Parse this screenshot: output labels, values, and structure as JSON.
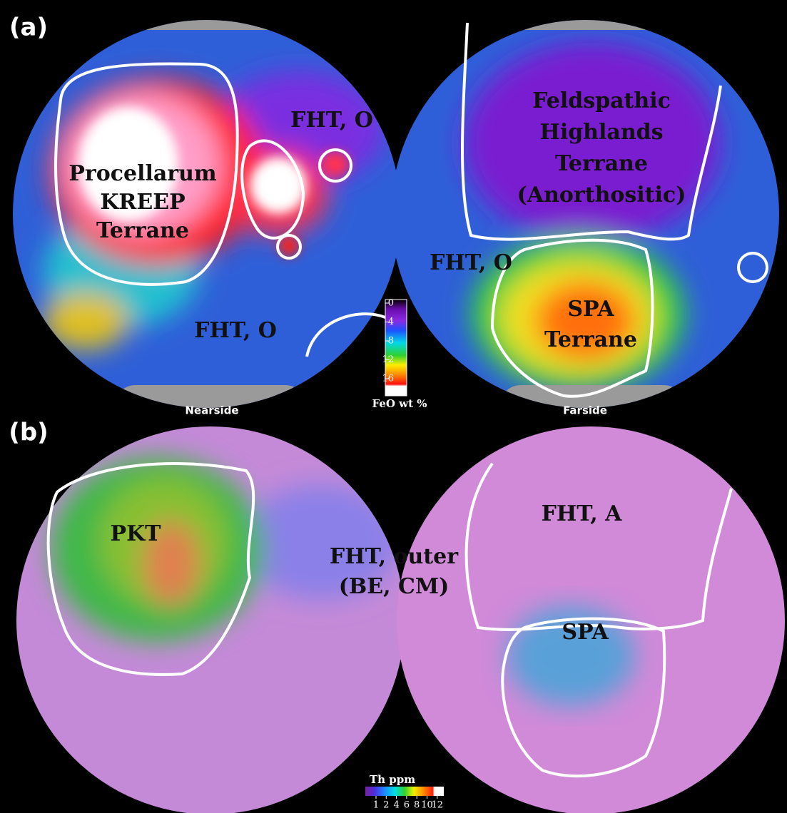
{
  "panels": [
    {
      "label": "(a)",
      "hemispheres": [
        {
          "caption": "Nearside",
          "regions": [
            {
              "lines": [
                "Procellarum",
                "KREEP",
                "Terrane"
              ]
            },
            {
              "lines": [
                "FHT, O"
              ]
            },
            {
              "lines": [
                "FHT, O"
              ]
            }
          ]
        },
        {
          "caption": "Farside",
          "regions": [
            {
              "lines": [
                "Feldspathic",
                "Highlands",
                "Terrane",
                "(Anorthositic)"
              ]
            },
            {
              "lines": [
                "FHT, O"
              ]
            },
            {
              "lines": [
                "SPA",
                "Terrane"
              ]
            }
          ]
        }
      ],
      "colorbar": {
        "title": "FeO wt %",
        "ticks": [
          0,
          4,
          8,
          12,
          16
        ]
      }
    },
    {
      "label": "(b)",
      "hemispheres": [
        {
          "regions": [
            {
              "lines": [
                "PKT"
              ]
            },
            {
              "lines": [
                "FHT, outer",
                "(BE, CM)"
              ]
            }
          ]
        },
        {
          "regions": [
            {
              "lines": [
                "FHT, A"
              ]
            },
            {
              "lines": [
                "SPA"
              ]
            }
          ]
        }
      ],
      "colorbar": {
        "title": "Th ppm",
        "ticks": [
          1,
          2,
          4,
          6,
          8,
          10,
          12
        ]
      }
    }
  ]
}
